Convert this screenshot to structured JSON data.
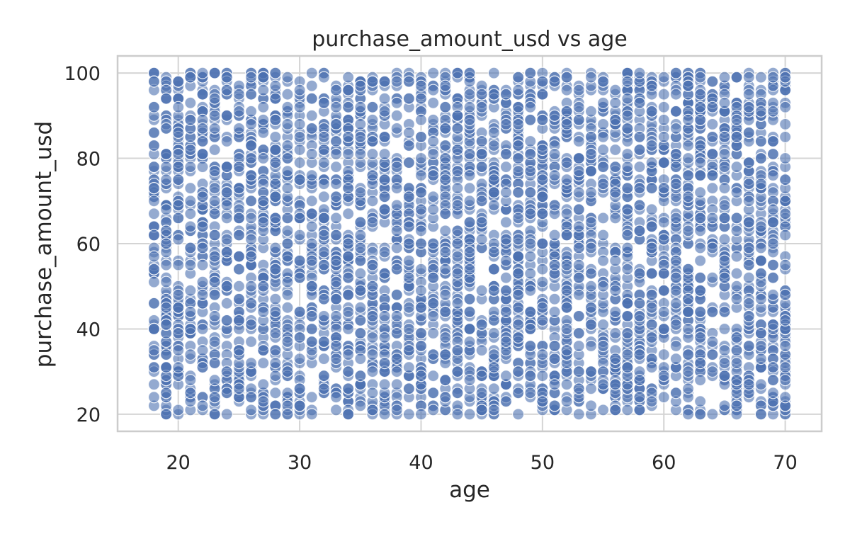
{
  "chart_data": {
    "type": "scatter",
    "title": "purchase_amount_usd vs age",
    "xlabel": "age",
    "ylabel": "purchase_amount_usd",
    "xlim": [
      15,
      73
    ],
    "ylim": [
      16,
      104
    ],
    "xticks": [
      20,
      30,
      40,
      50,
      60,
      70
    ],
    "yticks": [
      20,
      40,
      60,
      80,
      100
    ],
    "x_range": [
      18,
      70
    ],
    "y_range": [
      20,
      100
    ],
    "point_count": 3900,
    "grid": true,
    "point_color": "#4c72b0",
    "point_alpha": 0.6,
    "marker_edge_color": "#ffffff"
  }
}
